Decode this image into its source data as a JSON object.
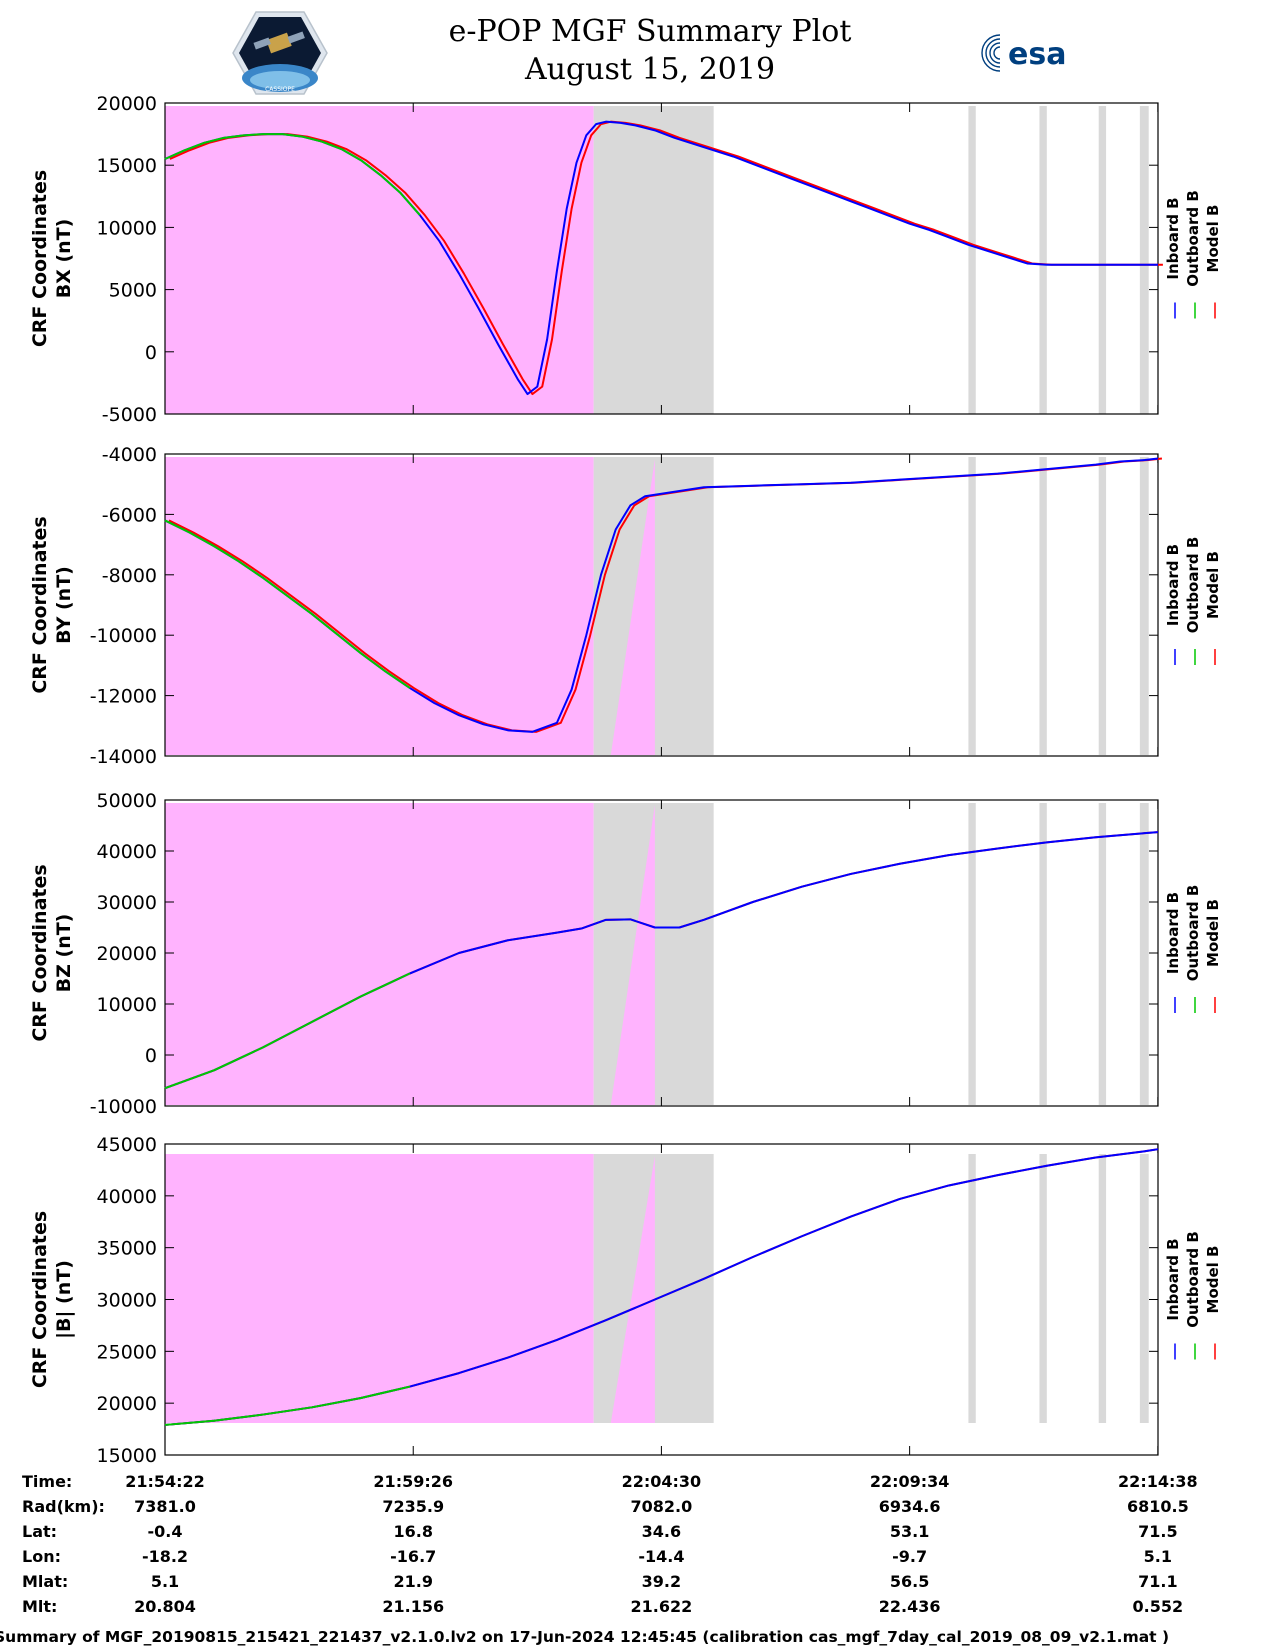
{
  "header": {
    "title": "e-POP MGF Summary Plot",
    "date": "August 15, 2019",
    "logo_left_text": "CASSIOPE",
    "logo_right_text": "esa"
  },
  "chart_data": [
    {
      "type": "line",
      "ylabel_line1": "CRF Coordinates",
      "ylabel_line2": "BX (nT)",
      "ylim": [
        -5000,
        20000
      ],
      "yticks": [
        -5000,
        0,
        5000,
        10000,
        15000,
        20000
      ],
      "x": [
        0,
        0.4,
        0.8,
        1.2,
        1.6,
        2.0,
        2.4,
        2.8,
        3.2,
        3.6,
        4.0,
        4.4,
        4.8,
        5.2,
        5.6,
        6.0,
        6.4,
        6.8,
        7.0,
        7.2,
        7.4,
        7.6,
        7.8,
        8.0,
        8.2,
        8.4,
        8.6,
        8.8,
        9.0,
        9.3,
        9.6,
        10.0,
        10.4,
        10.8,
        11.2,
        11.6,
        12.0,
        12.4,
        12.8,
        13.2,
        13.6,
        14.0,
        14.4,
        14.8,
        15.2,
        15.6,
        16.0,
        16.4,
        16.8,
        17.2,
        17.6,
        18.0,
        18.4,
        18.8,
        19.2,
        19.6,
        20.0,
        20.27
      ],
      "series": [
        {
          "name": "Inboard B",
          "color": "#0000ff",
          "dx": 0,
          "values": [
            15500,
            16200,
            16800,
            17200,
            17400,
            17500,
            17500,
            17300,
            16900,
            16300,
            15400,
            14200,
            12800,
            11000,
            8900,
            6300,
            3500,
            600,
            -800,
            -2200,
            -3400,
            -2800,
            1000,
            6500,
            11500,
            15200,
            17400,
            18300,
            18500,
            18400,
            18200,
            17800,
            17200,
            16700,
            16200,
            15700,
            15100,
            14500,
            13900,
            13300,
            12700,
            12100,
            11500,
            10900,
            10300,
            9800,
            9200,
            8600,
            8100,
            7600,
            7100,
            7000,
            7000,
            7000,
            7000,
            7000,
            7000,
            7000
          ]
        },
        {
          "name": "Outboard B",
          "color": "#00c800",
          "dx": 0,
          "values": [
            15500,
            16200,
            16800,
            17200,
            17400,
            17500,
            17500,
            17300,
            16900,
            16300,
            15400,
            14200,
            12800,
            11000,
            8900,
            6300,
            3500,
            600,
            -800,
            -2200,
            -3400,
            -2800,
            1000,
            6500,
            11500,
            15200,
            17400,
            18300,
            18500,
            18400,
            18200,
            17800,
            17200,
            16700,
            16200,
            15700,
            15100,
            14500,
            13900,
            13300,
            12700,
            12100,
            11500,
            10900,
            10300,
            9800,
            9200,
            8600,
            8100,
            7600,
            7100,
            7000,
            7000,
            7000,
            7000,
            7000,
            7000,
            7000
          ]
        },
        {
          "name": "Model B",
          "color": "#ff0000",
          "dx": 0.1,
          "values": [
            15500,
            16200,
            16800,
            17200,
            17400,
            17500,
            17500,
            17300,
            16900,
            16300,
            15400,
            14200,
            12800,
            11000,
            8900,
            6300,
            3500,
            600,
            -800,
            -2200,
            -3400,
            -2800,
            1000,
            6500,
            11500,
            15200,
            17400,
            18300,
            18500,
            18400,
            18200,
            17800,
            17200,
            16700,
            16200,
            15700,
            15100,
            14500,
            13900,
            13300,
            12700,
            12100,
            11500,
            10900,
            10300,
            9800,
            9200,
            8600,
            8100,
            7600,
            7100,
            7000,
            7000,
            7000,
            7000,
            7000,
            7000,
            7000
          ]
        }
      ]
    },
    {
      "type": "line",
      "ylabel_line1": "CRF Coordinates",
      "ylabel_line2": "BY (nT)",
      "ylim": [
        -14000,
        -4000
      ],
      "yticks": [
        -14000,
        -12000,
        -10000,
        -8000,
        -6000,
        -4000
      ],
      "x": [
        0,
        0.5,
        1.0,
        1.5,
        2.0,
        2.5,
        3.0,
        3.5,
        4.0,
        4.5,
        5.0,
        5.5,
        6.0,
        6.5,
        7.0,
        7.5,
        8.0,
        8.3,
        8.6,
        8.9,
        9.2,
        9.5,
        9.8,
        10.2,
        10.6,
        11.0,
        12.0,
        13.0,
        14.0,
        15.0,
        16.0,
        17.0,
        18.0,
        19.0,
        19.5,
        20.0,
        20.27
      ],
      "series": [
        {
          "name": "Inboard B",
          "color": "#0000ff",
          "dx": 0,
          "values": [
            -6200,
            -6600,
            -7050,
            -7550,
            -8100,
            -8700,
            -9300,
            -9950,
            -10600,
            -11200,
            -11750,
            -12250,
            -12650,
            -12950,
            -13150,
            -13200,
            -12900,
            -11800,
            -10000,
            -8000,
            -6500,
            -5700,
            -5400,
            -5300,
            -5200,
            -5100,
            -5050,
            -5000,
            -4950,
            -4850,
            -4750,
            -4650,
            -4500,
            -4350,
            -4250,
            -4200,
            -4150
          ]
        },
        {
          "name": "Outboard B",
          "color": "#00c800",
          "dx": 0,
          "values": [
            -6200,
            -6600,
            -7050,
            -7550,
            -8100,
            -8700,
            -9300,
            -9950,
            -10600,
            -11200,
            -11750,
            -12250,
            -12650,
            -12950,
            -13150,
            -13200,
            -12900,
            -11800,
            -10000,
            -8000,
            -6500,
            -5700,
            -5400,
            -5300,
            -5200,
            -5100,
            -5050,
            -5000,
            -4950,
            -4850,
            -4750,
            -4650,
            -4500,
            -4350,
            -4250,
            -4200,
            -4150
          ]
        },
        {
          "name": "Model B",
          "color": "#ff0000",
          "dx": 0.08,
          "values": [
            -6200,
            -6600,
            -7050,
            -7550,
            -8100,
            -8700,
            -9300,
            -9950,
            -10600,
            -11200,
            -11750,
            -12250,
            -12650,
            -12950,
            -13150,
            -13200,
            -12900,
            -11800,
            -10000,
            -8000,
            -6500,
            -5700,
            -5400,
            -5300,
            -5200,
            -5100,
            -5050,
            -5000,
            -4950,
            -4850,
            -4750,
            -4650,
            -4500,
            -4350,
            -4250,
            -4200,
            -4150
          ]
        }
      ]
    },
    {
      "type": "line",
      "ylabel_line1": "CRF Coordinates",
      "ylabel_line2": "BZ (nT)",
      "ylim": [
        -10000,
        50000
      ],
      "yticks": [
        -10000,
        0,
        10000,
        20000,
        30000,
        40000,
        50000
      ],
      "x": [
        0,
        1,
        2,
        3,
        4,
        5,
        6,
        7,
        8,
        8.5,
        9,
        9.5,
        10,
        10.5,
        11,
        12,
        13,
        14,
        15,
        16,
        17,
        18,
        19,
        20,
        20.27
      ],
      "series": [
        {
          "name": "Inboard B",
          "color": "#0000ff",
          "dx": 0,
          "values": [
            -6500,
            -3000,
            1500,
            6500,
            11500,
            16000,
            20000,
            22500,
            24000,
            24800,
            26500,
            26600,
            25000,
            25000,
            26500,
            30000,
            33000,
            35500,
            37500,
            39200,
            40500,
            41700,
            42700,
            43500,
            43700
          ]
        },
        {
          "name": "Outboard B",
          "color": "#00c800",
          "dx": 0,
          "values": [
            -6500,
            -3000,
            1500,
            6500,
            11500,
            16000,
            20000,
            22500,
            24000,
            24800,
            26500,
            26600,
            25000,
            25000,
            26500,
            30000,
            33000,
            35500,
            37500,
            39200,
            40500,
            41700,
            42700,
            43500,
            43700
          ]
        },
        {
          "name": "Model B",
          "color": "#ff0000",
          "dx": 0,
          "values": [
            -6500,
            -3000,
            1500,
            6500,
            11500,
            16000,
            20000,
            22500,
            24000,
            24800,
            26500,
            26600,
            25000,
            25000,
            26500,
            30000,
            33000,
            35500,
            37500,
            39200,
            40500,
            41700,
            42700,
            43500,
            43700
          ]
        }
      ]
    },
    {
      "type": "line",
      "ylabel_line1": "CRF Coordinates",
      "ylabel_line2": "|B| (nT)",
      "ylim": [
        15000,
        45000
      ],
      "yticks": [
        15000,
        20000,
        25000,
        30000,
        35000,
        40000,
        45000
      ],
      "x": [
        0,
        1,
        2,
        3,
        4,
        5,
        6,
        7,
        8,
        9,
        10,
        11,
        12,
        13,
        14,
        15,
        16,
        17,
        18,
        19,
        20,
        20.27
      ],
      "series": [
        {
          "name": "Inboard B",
          "color": "#0000ff",
          "dx": 0,
          "values": [
            17900,
            18300,
            18900,
            19600,
            20500,
            21600,
            22900,
            24400,
            26100,
            28000,
            30000,
            32000,
            34100,
            36100,
            38000,
            39700,
            41000,
            42000,
            42900,
            43700,
            44300,
            44500
          ]
        },
        {
          "name": "Outboard B",
          "color": "#00c800",
          "dx": 0,
          "values": [
            17900,
            18300,
            18900,
            19600,
            20500,
            21600,
            22900,
            24400,
            26100,
            28000,
            30000,
            32000,
            34100,
            36100,
            38000,
            39700,
            41000,
            42000,
            42900,
            43700,
            44300,
            44500
          ]
        },
        {
          "name": "Model B",
          "color": "#ff0000",
          "dx": 0,
          "values": [
            17900,
            18300,
            18900,
            19600,
            20500,
            21600,
            22900,
            24400,
            26100,
            28000,
            30000,
            32000,
            34100,
            36100,
            38000,
            39700,
            41000,
            42000,
            42900,
            43700,
            44300,
            44500
          ]
        }
      ]
    }
  ],
  "x_axis": {
    "xlim_minutes": [
      0,
      20.27
    ],
    "tick_minutes": [
      0,
      5.067,
      10.133,
      15.2,
      20.267
    ],
    "green_until_minutes": [
      5.3,
      5.3,
      5.8,
      5.8
    ]
  },
  "shading": {
    "pink_color": "#ffb3fe",
    "gray_color": "#d9d9d9",
    "pink_until_minutes": 8.75,
    "gray_range_minutes": [
      8.75,
      11.2
    ],
    "gray_bars_minutes": [
      [
        16.4,
        16.55
      ],
      [
        17.85,
        18.0
      ],
      [
        19.06,
        19.21
      ],
      [
        19.9,
        20.08
      ]
    ],
    "pink_wedge_minutes": [
      9.1,
      10.0
    ]
  },
  "legend": {
    "labels": [
      "Inboard B",
      "Outboard B",
      "Model B"
    ],
    "colors": [
      "#0000ff",
      "#00c800",
      "#ff0000"
    ]
  },
  "ephemeris": {
    "rows": [
      {
        "label": "Time:",
        "values": [
          "21:54:22",
          "21:59:26",
          "22:04:30",
          "22:09:34",
          "22:14:38"
        ]
      },
      {
        "label": "Rad(km):",
        "values": [
          "7381.0",
          "7235.9",
          "7082.0",
          "6934.6",
          "6810.5"
        ]
      },
      {
        "label": "Lat:",
        "values": [
          "-0.4",
          "16.8",
          "34.6",
          "53.1",
          "71.5"
        ]
      },
      {
        "label": "Lon:",
        "values": [
          "-18.2",
          "-16.7",
          "-14.4",
          "-9.7",
          "5.1"
        ]
      },
      {
        "label": "Mlat:",
        "values": [
          "5.1",
          "21.9",
          "39.2",
          "56.5",
          "71.1"
        ]
      },
      {
        "label": "Mlt:",
        "values": [
          "20.804",
          "21.156",
          "21.622",
          "22.436",
          "0.552"
        ]
      }
    ]
  },
  "footer": {
    "text": "Summary of MGF_20190815_215421_221437_v2.1.0.lv2 on 17-Jun-2024 12:45:45 (calibration cas_mgf_7day_cal_2019_08_09_v2.1.mat )"
  }
}
